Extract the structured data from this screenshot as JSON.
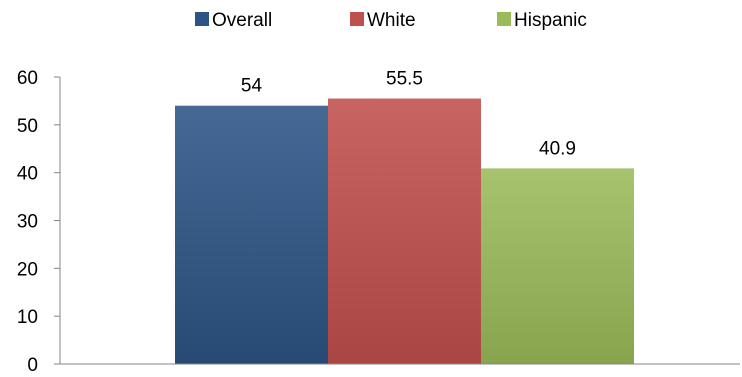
{
  "chart_data": {
    "type": "bar",
    "categories": [
      ""
    ],
    "series": [
      {
        "name": "Overall",
        "values": [
          54
        ],
        "color": "#2c5485"
      },
      {
        "name": "White",
        "values": [
          55.5
        ],
        "color": "#c0504d"
      },
      {
        "name": "Hispanic",
        "values": [
          40.9
        ],
        "color": "#9bbb59"
      }
    ],
    "title": "",
    "xlabel": "",
    "ylabel": "",
    "ylim": [
      0,
      60
    ],
    "yticks": [
      "0",
      "10",
      "20",
      "30",
      "40",
      "50",
      "60"
    ],
    "grid": false,
    "legend_position": "top-center",
    "data_labels": [
      "54",
      "55.5",
      "40.9"
    ]
  }
}
